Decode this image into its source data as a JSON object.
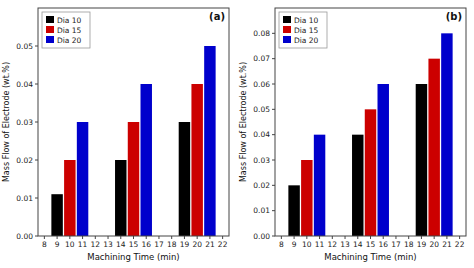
{
  "chart_data": [
    {
      "type": "bar",
      "title": "(a)",
      "x_label": "Machining Time (min)",
      "y_label": "Mass Flow of Electrode (wt.%)",
      "series": [
        {
          "name": "Dia 10",
          "color": "#000000",
          "x": [
            9,
            14,
            19
          ],
          "values": [
            0.011,
            0.02,
            0.03
          ]
        },
        {
          "name": "Dia 15",
          "color": "#cc0000",
          "x": [
            10,
            15,
            20
          ],
          "values": [
            0.02,
            0.03,
            0.04
          ]
        },
        {
          "name": "Dia 20",
          "color": "#0000cc",
          "x": [
            11,
            16,
            21
          ],
          "values": [
            0.03,
            0.04,
            0.05
          ]
        }
      ],
      "xlim": [
        7.5,
        22.5
      ],
      "xticks": [
        8,
        9,
        10,
        11,
        12,
        13,
        14,
        15,
        16,
        17,
        18,
        19,
        20,
        21,
        22
      ],
      "ylim": [
        0,
        0.06
      ],
      "yticks": [
        {
          "value": 0,
          "label": "0.00"
        },
        0.01,
        0.02,
        0.03,
        0.04,
        0.05
      ],
      "legend": "upper left",
      "grid": false
    },
    {
      "type": "bar",
      "title": "(b)",
      "x_label": "Machining Time (min)",
      "y_label": "Mass Flow of Electrode (wt.%)",
      "series": [
        {
          "name": "Dia 10",
          "color": "#000000",
          "x": [
            9,
            14,
            19
          ],
          "values": [
            0.02,
            0.04,
            0.06
          ]
        },
        {
          "name": "Dia 15",
          "color": "#cc0000",
          "x": [
            10,
            15,
            20
          ],
          "values": [
            0.03,
            0.05,
            0.07
          ]
        },
        {
          "name": "Dia 20",
          "color": "#0000cc",
          "x": [
            11,
            16,
            21
          ],
          "values": [
            0.04,
            0.06,
            0.08
          ]
        }
      ],
      "xlim": [
        7.5,
        22.5
      ],
      "xticks": [
        8,
        9,
        10,
        11,
        12,
        13,
        14,
        15,
        16,
        17,
        18,
        19,
        20,
        21,
        22
      ],
      "ylim": [
        0,
        0.09
      ],
      "yticks": [
        {
          "value": 0,
          "label": "0.00"
        },
        0.01,
        0.02,
        0.03,
        0.04,
        0.05,
        0.06,
        0.07,
        0.08
      ],
      "legend": "upper left",
      "grid": false
    }
  ]
}
